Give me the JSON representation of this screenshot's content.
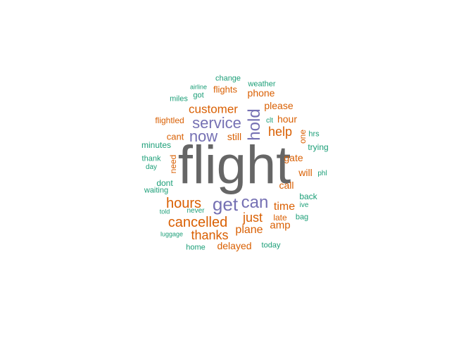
{
  "colors": {
    "gray": "#666666",
    "purple": "#7570B3",
    "orange": "#D95F02",
    "green": "#1B9E77"
  },
  "wordcloud": {
    "words": [
      {
        "text": "flight",
        "weight": 100,
        "color": "gray"
      },
      {
        "text": "get",
        "weight": 40,
        "color": "purple"
      },
      {
        "text": "can",
        "weight": 36,
        "color": "purple"
      },
      {
        "text": "hold",
        "weight": 34,
        "color": "purple"
      },
      {
        "text": "service",
        "weight": 34,
        "color": "purple"
      },
      {
        "text": "now",
        "weight": 30,
        "color": "purple"
      },
      {
        "text": "hours",
        "weight": 28,
        "color": "orange"
      },
      {
        "text": "cancelled",
        "weight": 28,
        "color": "orange"
      },
      {
        "text": "help",
        "weight": 26,
        "color": "orange"
      },
      {
        "text": "thanks",
        "weight": 26,
        "color": "orange"
      },
      {
        "text": "just",
        "weight": 24,
        "color": "orange"
      },
      {
        "text": "customer",
        "weight": 24,
        "color": "orange"
      },
      {
        "text": "time",
        "weight": 22,
        "color": "orange"
      },
      {
        "text": "plane",
        "weight": 22,
        "color": "orange"
      },
      {
        "text": "amp",
        "weight": 21,
        "color": "orange"
      },
      {
        "text": "delayed",
        "weight": 20,
        "color": "orange"
      },
      {
        "text": "call",
        "weight": 18,
        "color": "orange"
      },
      {
        "text": "gate",
        "weight": 18,
        "color": "orange"
      },
      {
        "text": "will",
        "weight": 18,
        "color": "orange"
      },
      {
        "text": "hour",
        "weight": 18,
        "color": "orange"
      },
      {
        "text": "please",
        "weight": 18,
        "color": "orange"
      },
      {
        "text": "phone",
        "weight": 18,
        "color": "orange"
      },
      {
        "text": "flights",
        "weight": 17,
        "color": "orange"
      },
      {
        "text": "still",
        "weight": 17,
        "color": "orange"
      },
      {
        "text": "cant",
        "weight": 16,
        "color": "orange"
      },
      {
        "text": "flightled",
        "weight": 16,
        "color": "orange"
      },
      {
        "text": "need",
        "weight": 16,
        "color": "orange"
      },
      {
        "text": "late",
        "weight": 15,
        "color": "orange"
      },
      {
        "text": "one",
        "weight": 15,
        "color": "orange"
      },
      {
        "text": "minutes",
        "weight": 15,
        "color": "green"
      },
      {
        "text": "dont",
        "weight": 14,
        "color": "green"
      },
      {
        "text": "back",
        "weight": 14,
        "color": "green"
      },
      {
        "text": "trying",
        "weight": 14,
        "color": "green"
      },
      {
        "text": "thank",
        "weight": 14,
        "color": "green"
      },
      {
        "text": "hrs",
        "weight": 13,
        "color": "green"
      },
      {
        "text": "miles",
        "weight": 13,
        "color": "green"
      },
      {
        "text": "got",
        "weight": 13,
        "color": "green"
      },
      {
        "text": "weather",
        "weight": 13,
        "color": "green"
      },
      {
        "text": "change",
        "weight": 13,
        "color": "green"
      },
      {
        "text": "waiting",
        "weight": 13,
        "color": "green"
      },
      {
        "text": "home",
        "weight": 13,
        "color": "green"
      },
      {
        "text": "today",
        "weight": 13,
        "color": "green"
      },
      {
        "text": "bag",
        "weight": 13,
        "color": "green"
      },
      {
        "text": "day",
        "weight": 12,
        "color": "green"
      },
      {
        "text": "never",
        "weight": 12,
        "color": "green"
      },
      {
        "text": "phl",
        "weight": 12,
        "color": "green"
      },
      {
        "text": "ive",
        "weight": 11,
        "color": "green"
      },
      {
        "text": "clt",
        "weight": 11,
        "color": "green"
      },
      {
        "text": "airline",
        "weight": 11,
        "color": "green"
      },
      {
        "text": "told",
        "weight": 11,
        "color": "green"
      },
      {
        "text": "luggage",
        "weight": 11,
        "color": "green"
      }
    ]
  }
}
